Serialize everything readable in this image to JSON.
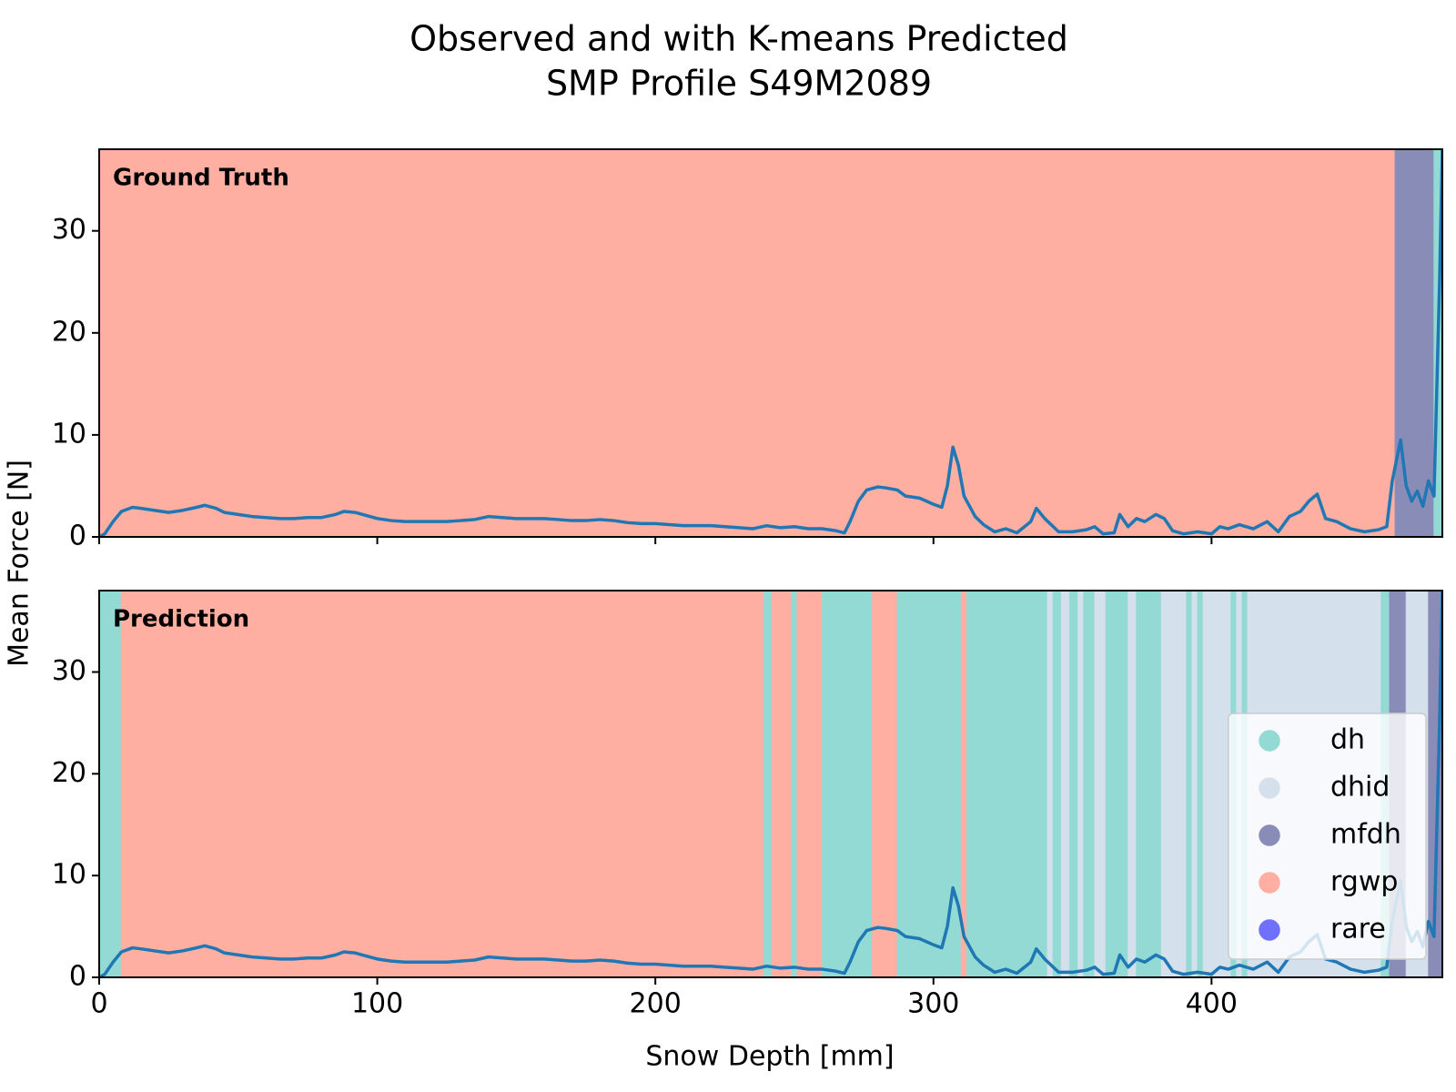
{
  "chart_data": {
    "type": "line",
    "title": [
      "Observed and with K-means Predicted",
      "SMP Profile S49M2089"
    ],
    "xlabel": "Snow Depth [mm]",
    "ylabel": "Mean Force [N]",
    "xlim": [
      0,
      483
    ],
    "xticks": [
      0,
      100,
      200,
      300,
      400
    ],
    "ylim": [
      0,
      38
    ],
    "yticks": [
      0,
      10,
      20,
      30
    ],
    "color": "#1f77b4",
    "x": [
      0,
      2,
      5,
      8,
      12,
      15,
      20,
      25,
      30,
      35,
      38,
      42,
      45,
      50,
      55,
      60,
      65,
      70,
      75,
      80,
      85,
      88,
      92,
      96,
      100,
      105,
      110,
      115,
      120,
      125,
      130,
      135,
      140,
      145,
      150,
      155,
      160,
      165,
      170,
      175,
      180,
      185,
      190,
      195,
      200,
      205,
      210,
      215,
      220,
      225,
      230,
      235,
      240,
      245,
      250,
      255,
      260,
      265,
      268,
      270,
      273,
      276,
      280,
      283,
      287,
      290,
      295,
      300,
      303,
      305,
      307,
      309,
      311,
      315,
      318,
      322,
      326,
      330,
      335,
      337,
      340,
      345,
      350,
      355,
      358,
      361,
      365,
      367,
      370,
      373,
      376,
      380,
      383,
      386,
      390,
      395,
      400,
      403,
      406,
      410,
      415,
      420,
      424,
      428,
      432,
      435,
      438,
      441,
      445,
      450,
      455,
      460,
      463,
      465,
      468,
      470,
      472,
      474,
      476,
      478,
      480,
      482,
      483
    ],
    "values": [
      0,
      0.3,
      1.5,
      2.5,
      2.9,
      2.8,
      2.6,
      2.4,
      2.6,
      2.9,
      3.1,
      2.8,
      2.4,
      2.2,
      2.0,
      1.9,
      1.8,
      1.8,
      1.9,
      1.9,
      2.2,
      2.5,
      2.4,
      2.1,
      1.8,
      1.6,
      1.5,
      1.5,
      1.5,
      1.5,
      1.6,
      1.7,
      2.0,
      1.9,
      1.8,
      1.8,
      1.8,
      1.7,
      1.6,
      1.6,
      1.7,
      1.6,
      1.4,
      1.3,
      1.3,
      1.2,
      1.1,
      1.1,
      1.1,
      1.0,
      0.9,
      0.8,
      1.1,
      0.9,
      1.0,
      0.8,
      0.8,
      0.6,
      0.4,
      1.5,
      3.5,
      4.6,
      4.9,
      4.8,
      4.6,
      4.0,
      3.8,
      3.2,
      2.9,
      5.0,
      8.8,
      7.0,
      4.0,
      2.0,
      1.2,
      0.5,
      0.8,
      0.4,
      1.5,
      2.8,
      1.8,
      0.5,
      0.5,
      0.7,
      1.0,
      0.3,
      0.4,
      2.2,
      1.0,
      1.8,
      1.5,
      2.2,
      1.8,
      0.6,
      0.3,
      0.5,
      0.3,
      1.0,
      0.8,
      1.2,
      0.8,
      1.5,
      0.5,
      2.0,
      2.5,
      3.5,
      4.2,
      1.8,
      1.5,
      0.8,
      0.5,
      0.7,
      1.0,
      5.5,
      9.5,
      5.0,
      3.5,
      4.5,
      3.0,
      5.5,
      4.0,
      25,
      38
    ],
    "classes": [
      {
        "name": "dh",
        "color": "#93d9d4"
      },
      {
        "name": "dhid",
        "color": "#d5e0ed"
      },
      {
        "name": "mfdh",
        "color": "#8a8cb8"
      },
      {
        "name": "rgwp",
        "color": "#ffaea2"
      },
      {
        "name": "rare",
        "color": "#7070ff"
      }
    ],
    "legend": "lower right",
    "panels": [
      {
        "label": "Ground Truth",
        "spans": [
          {
            "from": 0,
            "to": 466,
            "class": "rgwp"
          },
          {
            "from": 466,
            "to": 480,
            "class": "mfdh"
          },
          {
            "from": 480,
            "to": 483,
            "class": "dh"
          }
        ]
      },
      {
        "label": "Prediction",
        "spans": [
          {
            "from": 0,
            "to": 8,
            "class": "dh"
          },
          {
            "from": 8,
            "to": 239,
            "class": "rgwp"
          },
          {
            "from": 239,
            "to": 242,
            "class": "dh"
          },
          {
            "from": 242,
            "to": 249,
            "class": "rgwp"
          },
          {
            "from": 249,
            "to": 251,
            "class": "dh"
          },
          {
            "from": 251,
            "to": 260,
            "class": "rgwp"
          },
          {
            "from": 260,
            "to": 278,
            "class": "dh"
          },
          {
            "from": 278,
            "to": 287,
            "class": "rgwp"
          },
          {
            "from": 287,
            "to": 310,
            "class": "dh"
          },
          {
            "from": 310,
            "to": 312,
            "class": "rgwp"
          },
          {
            "from": 312,
            "to": 341,
            "class": "dh"
          },
          {
            "from": 341,
            "to": 343,
            "class": "dhid"
          },
          {
            "from": 343,
            "to": 346,
            "class": "dh"
          },
          {
            "from": 346,
            "to": 349,
            "class": "dhid"
          },
          {
            "from": 349,
            "to": 352,
            "class": "dh"
          },
          {
            "from": 352,
            "to": 354,
            "class": "dhid"
          },
          {
            "from": 354,
            "to": 358,
            "class": "dh"
          },
          {
            "from": 358,
            "to": 362,
            "class": "dhid"
          },
          {
            "from": 362,
            "to": 370,
            "class": "dh"
          },
          {
            "from": 370,
            "to": 373,
            "class": "dhid"
          },
          {
            "from": 373,
            "to": 382,
            "class": "dh"
          },
          {
            "from": 382,
            "to": 391,
            "class": "dhid"
          },
          {
            "from": 391,
            "to": 393,
            "class": "dh"
          },
          {
            "from": 393,
            "to": 395,
            "class": "dhid"
          },
          {
            "from": 395,
            "to": 397,
            "class": "dh"
          },
          {
            "from": 397,
            "to": 407,
            "class": "dhid"
          },
          {
            "from": 407,
            "to": 409,
            "class": "dh"
          },
          {
            "from": 409,
            "to": 411,
            "class": "dhid"
          },
          {
            "from": 411,
            "to": 413,
            "class": "dh"
          },
          {
            "from": 413,
            "to": 461,
            "class": "dhid"
          },
          {
            "from": 461,
            "to": 464,
            "class": "dh"
          },
          {
            "from": 464,
            "to": 470,
            "class": "mfdh"
          },
          {
            "from": 470,
            "to": 478,
            "class": "dhid"
          },
          {
            "from": 478,
            "to": 483,
            "class": "mfdh"
          }
        ]
      }
    ]
  }
}
